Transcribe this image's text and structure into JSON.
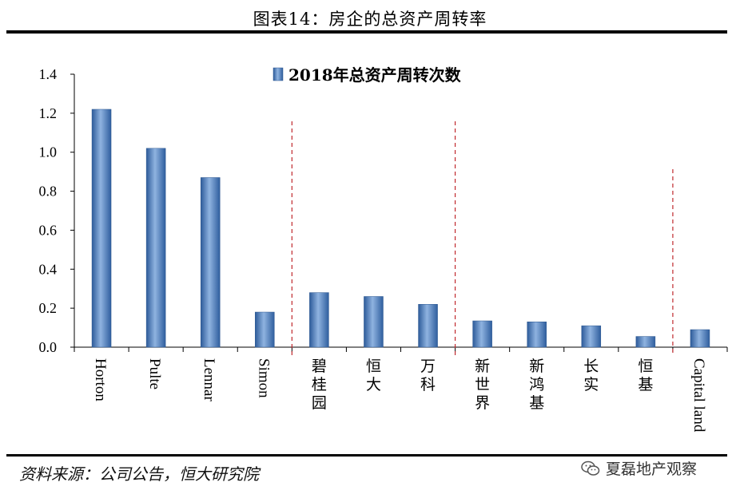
{
  "header": {
    "title": "图表14：房企的总资产周转率"
  },
  "footer": {
    "source": "资料来源：公司公告，恒大研究院",
    "watermark": "夏磊地产观察",
    "watermark_icon": "wechat-icon"
  },
  "chart_data": {
    "type": "bar",
    "title": "",
    "xlabel": "",
    "ylabel": "",
    "legend_position": "top-center",
    "ylim": [
      0,
      1.4
    ],
    "yticks": [
      "0.0",
      "0.2",
      "0.4",
      "0.6",
      "0.8",
      "1.0",
      "1.2",
      "1.4"
    ],
    "categories": [
      "Horton",
      "Pulte",
      "Lennar",
      "Simon",
      "碧桂园",
      "恒大",
      "万科",
      "新世界",
      "新鸿基",
      "长实",
      "恒基",
      "Capital land"
    ],
    "series": [
      {
        "name": "2018年总资产周转次数",
        "color": "#4a78b8",
        "values": [
          1.22,
          1.02,
          0.87,
          0.18,
          0.28,
          0.26,
          0.22,
          0.135,
          0.13,
          0.11,
          0.055,
          0.09
        ]
      }
    ],
    "group_separators_after": [
      "Simon",
      "万科",
      "恒基"
    ],
    "separator_color": "#c0282d",
    "grid": false
  }
}
